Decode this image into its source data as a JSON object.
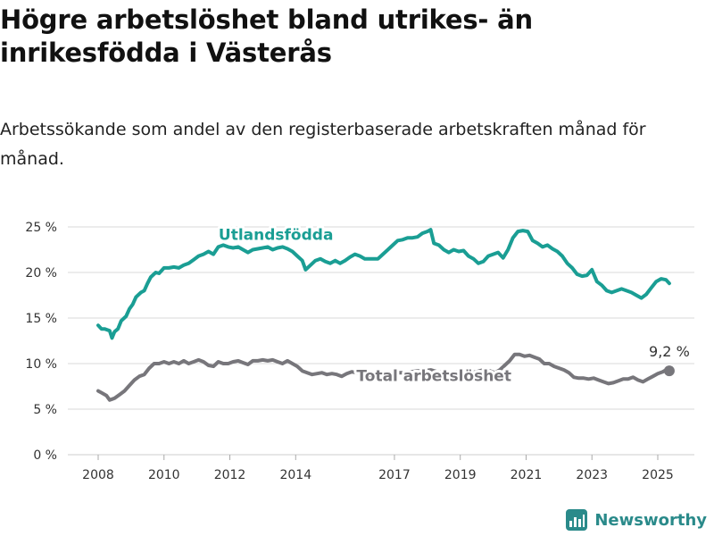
{
  "title": "Högre arbetslöshet bland utrikes- än inrikesfödda i Västerås",
  "subtitle": "Arbetssökande som andel av den registerbaserade arbetskraften månad för månad.",
  "brand": {
    "name": "Newsworthy",
    "icon": "bar-chart-logo-icon",
    "color": "#2a8a8a"
  },
  "chart_data": {
    "type": "line",
    "xlim": [
      2008,
      2025.5
    ],
    "ylim": [
      0,
      25
    ],
    "y_ticks": [
      {
        "value": 0,
        "label": "0 %"
      },
      {
        "value": 5,
        "label": "5 %"
      },
      {
        "value": 10,
        "label": "10 %"
      },
      {
        "value": 15,
        "label": "15 %"
      },
      {
        "value": 20,
        "label": "20 %"
      },
      {
        "value": 25,
        "label": "25 %"
      }
    ],
    "x_ticks": [
      {
        "value": 2008,
        "label": "2008"
      },
      {
        "value": 2010,
        "label": "2010"
      },
      {
        "value": 2012,
        "label": "2012"
      },
      {
        "value": 2014,
        "label": "2014"
      },
      {
        "value": 2017,
        "label": "2017"
      },
      {
        "value": 2019,
        "label": "2019"
      },
      {
        "value": 2021,
        "label": "2021"
      },
      {
        "value": 2023,
        "label": "2023"
      },
      {
        "value": 2025,
        "label": "2025"
      }
    ],
    "grid": "horizontal",
    "series": [
      {
        "name": "Utlandsfödda",
        "color": "#1a9e94",
        "points": [
          [
            2008.0,
            14.2
          ],
          [
            2008.1,
            13.8
          ],
          [
            2008.2,
            13.8
          ],
          [
            2008.35,
            13.6
          ],
          [
            2008.42,
            12.8
          ],
          [
            2008.5,
            13.5
          ],
          [
            2008.6,
            13.8
          ],
          [
            2008.7,
            14.7
          ],
          [
            2008.85,
            15.2
          ],
          [
            2008.95,
            16.0
          ],
          [
            2009.05,
            16.5
          ],
          [
            2009.15,
            17.3
          ],
          [
            2009.3,
            17.8
          ],
          [
            2009.4,
            18.0
          ],
          [
            2009.5,
            18.8
          ],
          [
            2009.6,
            19.5
          ],
          [
            2009.75,
            20.0
          ],
          [
            2009.85,
            19.9
          ],
          [
            2010.0,
            20.5
          ],
          [
            2010.15,
            20.5
          ],
          [
            2010.3,
            20.6
          ],
          [
            2010.45,
            20.5
          ],
          [
            2010.6,
            20.8
          ],
          [
            2010.75,
            21.0
          ],
          [
            2010.9,
            21.4
          ],
          [
            2011.05,
            21.8
          ],
          [
            2011.2,
            22.0
          ],
          [
            2011.35,
            22.3
          ],
          [
            2011.5,
            22.0
          ],
          [
            2011.65,
            22.8
          ],
          [
            2011.8,
            23.0
          ],
          [
            2011.95,
            22.8
          ],
          [
            2012.1,
            22.7
          ],
          [
            2012.25,
            22.8
          ],
          [
            2012.4,
            22.5
          ],
          [
            2012.55,
            22.2
          ],
          [
            2012.7,
            22.5
          ],
          [
            2012.85,
            22.6
          ],
          [
            2013.0,
            22.7
          ],
          [
            2013.15,
            22.8
          ],
          [
            2013.3,
            22.5
          ],
          [
            2013.45,
            22.7
          ],
          [
            2013.6,
            22.8
          ],
          [
            2013.75,
            22.6
          ],
          [
            2013.9,
            22.3
          ],
          [
            2014.05,
            21.8
          ],
          [
            2014.2,
            21.3
          ],
          [
            2014.3,
            20.3
          ],
          [
            2014.45,
            20.8
          ],
          [
            2014.6,
            21.3
          ],
          [
            2014.75,
            21.5
          ],
          [
            2014.9,
            21.2
          ],
          [
            2015.05,
            21.0
          ],
          [
            2015.2,
            21.3
          ],
          [
            2015.35,
            21.0
          ],
          [
            2015.5,
            21.3
          ],
          [
            2015.65,
            21.7
          ],
          [
            2015.8,
            22.0
          ],
          [
            2015.95,
            21.8
          ],
          [
            2016.1,
            21.5
          ],
          [
            2016.3,
            21.5
          ],
          [
            2016.5,
            21.5
          ],
          [
            2016.65,
            22.0
          ],
          [
            2016.8,
            22.5
          ],
          [
            2016.95,
            23.0
          ],
          [
            2017.1,
            23.5
          ],
          [
            2017.25,
            23.6
          ],
          [
            2017.4,
            23.8
          ],
          [
            2017.55,
            23.8
          ],
          [
            2017.7,
            23.9
          ],
          [
            2017.85,
            24.3
          ],
          [
            2018.0,
            24.5
          ],
          [
            2018.1,
            24.7
          ],
          [
            2018.2,
            23.2
          ],
          [
            2018.35,
            23.0
          ],
          [
            2018.5,
            22.5
          ],
          [
            2018.65,
            22.2
          ],
          [
            2018.8,
            22.5
          ],
          [
            2018.95,
            22.3
          ],
          [
            2019.1,
            22.4
          ],
          [
            2019.25,
            21.8
          ],
          [
            2019.4,
            21.5
          ],
          [
            2019.55,
            21.0
          ],
          [
            2019.7,
            21.2
          ],
          [
            2019.85,
            21.8
          ],
          [
            2020.0,
            22.0
          ],
          [
            2020.15,
            22.2
          ],
          [
            2020.3,
            21.6
          ],
          [
            2020.45,
            22.5
          ],
          [
            2020.6,
            23.8
          ],
          [
            2020.75,
            24.5
          ],
          [
            2020.9,
            24.6
          ],
          [
            2021.05,
            24.5
          ],
          [
            2021.2,
            23.5
          ],
          [
            2021.35,
            23.2
          ],
          [
            2021.5,
            22.8
          ],
          [
            2021.65,
            23.0
          ],
          [
            2021.8,
            22.6
          ],
          [
            2021.95,
            22.3
          ],
          [
            2022.1,
            21.8
          ],
          [
            2022.25,
            21.0
          ],
          [
            2022.4,
            20.5
          ],
          [
            2022.55,
            19.8
          ],
          [
            2022.7,
            19.6
          ],
          [
            2022.85,
            19.7
          ],
          [
            2023.0,
            20.3
          ],
          [
            2023.15,
            19.0
          ],
          [
            2023.3,
            18.6
          ],
          [
            2023.45,
            18.0
          ],
          [
            2023.6,
            17.8
          ],
          [
            2023.75,
            18.0
          ],
          [
            2023.9,
            18.2
          ],
          [
            2024.05,
            18.0
          ],
          [
            2024.2,
            17.8
          ],
          [
            2024.35,
            17.5
          ],
          [
            2024.5,
            17.2
          ],
          [
            2024.65,
            17.6
          ],
          [
            2024.8,
            18.3
          ],
          [
            2024.95,
            19.0
          ],
          [
            2025.1,
            19.3
          ],
          [
            2025.25,
            19.2
          ],
          [
            2025.35,
            18.8
          ]
        ]
      },
      {
        "name": "Total arbetslöshet",
        "color": "#77767b",
        "points": [
          [
            2008.0,
            7.0
          ],
          [
            2008.1,
            6.8
          ],
          [
            2008.25,
            6.5
          ],
          [
            2008.35,
            6.0
          ],
          [
            2008.5,
            6.2
          ],
          [
            2008.65,
            6.6
          ],
          [
            2008.8,
            7.0
          ],
          [
            2008.95,
            7.6
          ],
          [
            2009.1,
            8.2
          ],
          [
            2009.25,
            8.6
          ],
          [
            2009.4,
            8.8
          ],
          [
            2009.55,
            9.5
          ],
          [
            2009.7,
            10.0
          ],
          [
            2009.85,
            10.0
          ],
          [
            2010.0,
            10.2
          ],
          [
            2010.15,
            10.0
          ],
          [
            2010.3,
            10.2
          ],
          [
            2010.45,
            10.0
          ],
          [
            2010.6,
            10.3
          ],
          [
            2010.75,
            10.0
          ],
          [
            2010.9,
            10.2
          ],
          [
            2011.05,
            10.4
          ],
          [
            2011.2,
            10.2
          ],
          [
            2011.35,
            9.8
          ],
          [
            2011.5,
            9.7
          ],
          [
            2011.65,
            10.2
          ],
          [
            2011.8,
            10.0
          ],
          [
            2011.95,
            10.0
          ],
          [
            2012.1,
            10.2
          ],
          [
            2012.25,
            10.3
          ],
          [
            2012.4,
            10.1
          ],
          [
            2012.55,
            9.9
          ],
          [
            2012.7,
            10.3
          ],
          [
            2012.85,
            10.3
          ],
          [
            2013.0,
            10.4
          ],
          [
            2013.15,
            10.3
          ],
          [
            2013.3,
            10.4
          ],
          [
            2013.45,
            10.2
          ],
          [
            2013.6,
            10.0
          ],
          [
            2013.75,
            10.3
          ],
          [
            2013.9,
            10.0
          ],
          [
            2014.05,
            9.7
          ],
          [
            2014.2,
            9.2
          ],
          [
            2014.35,
            9.0
          ],
          [
            2014.5,
            8.8
          ],
          [
            2014.65,
            8.9
          ],
          [
            2014.8,
            9.0
          ],
          [
            2014.95,
            8.8
          ],
          [
            2015.1,
            8.9
          ],
          [
            2015.25,
            8.8
          ],
          [
            2015.4,
            8.6
          ],
          [
            2015.55,
            8.9
          ],
          [
            2015.7,
            9.1
          ],
          [
            2015.85,
            9.0
          ],
          [
            2016.0,
            8.9
          ],
          [
            2016.15,
            8.7
          ],
          [
            2016.3,
            8.5
          ],
          [
            2016.45,
            8.6
          ],
          [
            2016.6,
            8.7
          ],
          [
            2016.75,
            8.9
          ],
          [
            2016.9,
            9.0
          ],
          [
            2017.1,
            9.0
          ],
          [
            2017.3,
            9.0
          ],
          [
            2017.5,
            9.1
          ],
          [
            2017.7,
            9.2
          ],
          [
            2017.9,
            9.2
          ],
          [
            2018.1,
            9.3
          ],
          [
            2018.3,
            9.1
          ],
          [
            2018.5,
            9.0
          ],
          [
            2018.7,
            9.0
          ],
          [
            2018.9,
            9.1
          ],
          [
            2019.1,
            9.0
          ],
          [
            2019.3,
            9.0
          ],
          [
            2019.5,
            9.1
          ],
          [
            2019.7,
            9.3
          ],
          [
            2019.9,
            9.2
          ],
          [
            2020.05,
            9.0
          ],
          [
            2020.2,
            9.3
          ],
          [
            2020.35,
            9.8
          ],
          [
            2020.5,
            10.3
          ],
          [
            2020.65,
            11.0
          ],
          [
            2020.8,
            11.0
          ],
          [
            2020.95,
            10.8
          ],
          [
            2021.1,
            10.9
          ],
          [
            2021.25,
            10.7
          ],
          [
            2021.4,
            10.5
          ],
          [
            2021.55,
            10.0
          ],
          [
            2021.7,
            10.0
          ],
          [
            2021.85,
            9.7
          ],
          [
            2022.0,
            9.5
          ],
          [
            2022.15,
            9.3
          ],
          [
            2022.3,
            9.0
          ],
          [
            2022.45,
            8.5
          ],
          [
            2022.6,
            8.4
          ],
          [
            2022.75,
            8.4
          ],
          [
            2022.9,
            8.3
          ],
          [
            2023.05,
            8.4
          ],
          [
            2023.2,
            8.2
          ],
          [
            2023.35,
            8.0
          ],
          [
            2023.5,
            7.8
          ],
          [
            2023.65,
            7.9
          ],
          [
            2023.8,
            8.1
          ],
          [
            2023.95,
            8.3
          ],
          [
            2024.1,
            8.3
          ],
          [
            2024.25,
            8.5
          ],
          [
            2024.4,
            8.2
          ],
          [
            2024.55,
            8.0
          ],
          [
            2024.7,
            8.3
          ],
          [
            2024.85,
            8.6
          ],
          [
            2025.0,
            8.9
          ],
          [
            2025.15,
            9.1
          ],
          [
            2025.25,
            9.3
          ],
          [
            2025.35,
            9.2
          ]
        ]
      }
    ],
    "labels": [
      {
        "series": 0,
        "text": "Utlandsfödda",
        "x": 2013.4,
        "y": 23.6
      },
      {
        "series": 1,
        "text": "Total arbetslöshet",
        "x": 2018.2,
        "y": 8.1
      }
    ],
    "end_marker": {
      "series": 1,
      "x": 2025.35,
      "y": 9.2,
      "text": "9,2 %"
    }
  }
}
